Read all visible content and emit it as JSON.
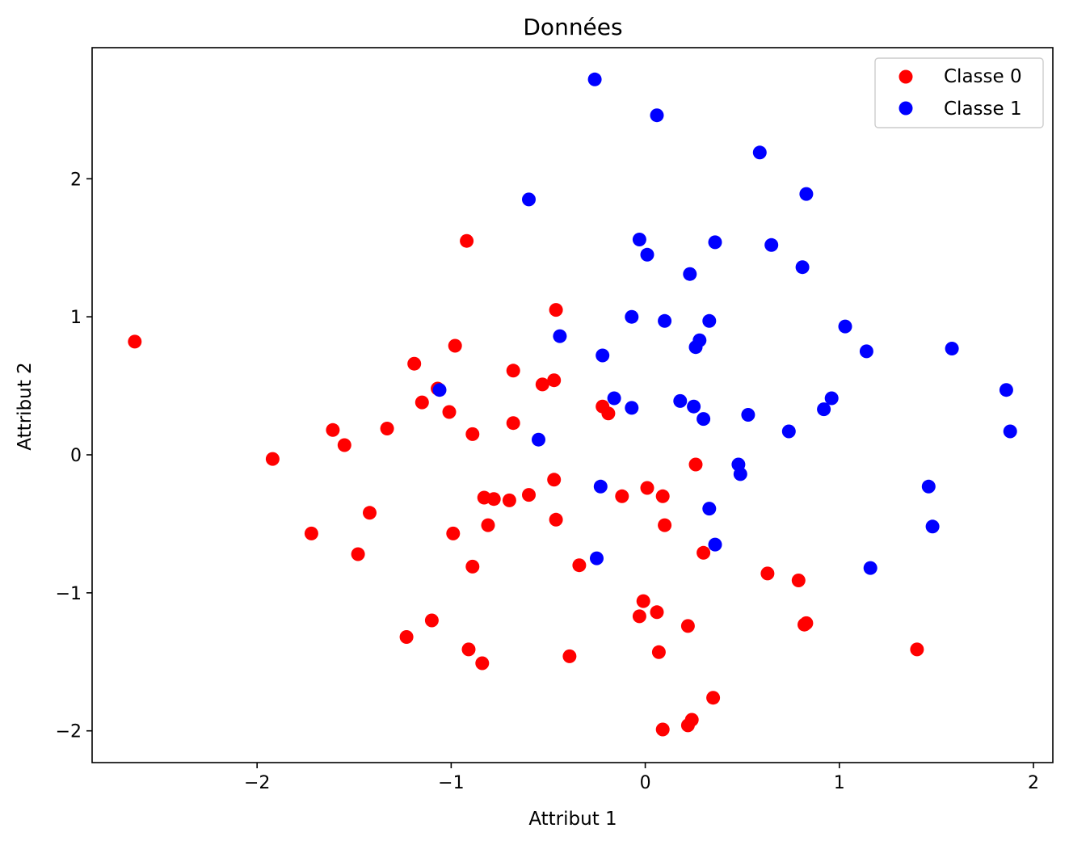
{
  "chart_data": {
    "type": "scatter",
    "title": "Données",
    "xlabel": "Attribut 1",
    "ylabel": "Attribut 2",
    "xlim": [
      -2.85,
      2.1
    ],
    "ylim": [
      -2.23,
      2.95
    ],
    "xticks": [
      -2,
      -1,
      0,
      1,
      2
    ],
    "yticks": [
      -2,
      -1,
      0,
      1,
      2
    ],
    "xtick_labels": [
      "−2",
      "−1",
      "0",
      "1",
      "2"
    ],
    "ytick_labels": [
      "−2",
      "−1",
      "0",
      "1",
      "2"
    ],
    "grid": false,
    "legend_position": "top-right",
    "series": [
      {
        "name": "Classe 0",
        "color": "#ff0000",
        "points": [
          [
            -2.63,
            0.82
          ],
          [
            -1.92,
            -0.03
          ],
          [
            -1.72,
            -0.57
          ],
          [
            -1.61,
            0.18
          ],
          [
            -1.55,
            0.07
          ],
          [
            -1.48,
            -0.72
          ],
          [
            -1.42,
            -0.42
          ],
          [
            -1.33,
            0.19
          ],
          [
            -1.23,
            -1.32
          ],
          [
            -1.19,
            0.66
          ],
          [
            -1.15,
            0.38
          ],
          [
            -1.1,
            -1.2
          ],
          [
            -1.07,
            0.48
          ],
          [
            -1.01,
            0.31
          ],
          [
            -0.99,
            -0.57
          ],
          [
            -0.98,
            0.79
          ],
          [
            -0.92,
            1.55
          ],
          [
            -0.91,
            -1.41
          ],
          [
            -0.89,
            0.15
          ],
          [
            -0.89,
            -0.81
          ],
          [
            -0.84,
            -1.51
          ],
          [
            -0.83,
            -0.31
          ],
          [
            -0.81,
            -0.51
          ],
          [
            -0.78,
            -0.32
          ],
          [
            -0.7,
            -0.33
          ],
          [
            -0.68,
            0.61
          ],
          [
            -0.68,
            0.23
          ],
          [
            -0.6,
            -0.29
          ],
          [
            -0.53,
            0.51
          ],
          [
            -0.47,
            0.54
          ],
          [
            -0.47,
            -0.18
          ],
          [
            -0.46,
            -0.47
          ],
          [
            -0.46,
            1.05
          ],
          [
            -0.39,
            -1.46
          ],
          [
            -0.34,
            -0.8
          ],
          [
            -0.22,
            0.35
          ],
          [
            -0.19,
            0.3
          ],
          [
            -0.12,
            -0.3
          ],
          [
            -0.03,
            -1.17
          ],
          [
            -0.01,
            -1.06
          ],
          [
            0.01,
            -0.24
          ],
          [
            0.06,
            -1.14
          ],
          [
            0.07,
            -1.43
          ],
          [
            0.09,
            -0.3
          ],
          [
            0.09,
            -1.99
          ],
          [
            0.1,
            -0.51
          ],
          [
            0.22,
            -1.24
          ],
          [
            0.22,
            -1.96
          ],
          [
            0.24,
            -1.92
          ],
          [
            0.26,
            -0.07
          ],
          [
            0.3,
            -0.71
          ],
          [
            0.35,
            -1.76
          ],
          [
            0.63,
            -0.86
          ],
          [
            0.79,
            -0.91
          ],
          [
            0.82,
            -1.23
          ],
          [
            0.83,
            -1.22
          ],
          [
            1.4,
            -1.41
          ]
        ]
      },
      {
        "name": "Classe 1",
        "color": "#0000ff",
        "points": [
          [
            -1.06,
            0.47
          ],
          [
            -0.6,
            1.85
          ],
          [
            -0.55,
            0.11
          ],
          [
            -0.44,
            0.86
          ],
          [
            -0.26,
            2.72
          ],
          [
            -0.25,
            -0.75
          ],
          [
            -0.23,
            -0.23
          ],
          [
            -0.22,
            0.72
          ],
          [
            -0.16,
            0.41
          ],
          [
            -0.07,
            1.0
          ],
          [
            -0.07,
            0.34
          ],
          [
            -0.03,
            1.56
          ],
          [
            0.01,
            1.45
          ],
          [
            0.06,
            2.46
          ],
          [
            0.1,
            0.97
          ],
          [
            0.18,
            0.39
          ],
          [
            0.23,
            1.31
          ],
          [
            0.25,
            0.35
          ],
          [
            0.26,
            0.78
          ],
          [
            0.28,
            0.83
          ],
          [
            0.3,
            0.26
          ],
          [
            0.33,
            -0.39
          ],
          [
            0.33,
            0.97
          ],
          [
            0.36,
            -0.65
          ],
          [
            0.36,
            1.54
          ],
          [
            0.48,
            -0.07
          ],
          [
            0.49,
            -0.14
          ],
          [
            0.53,
            0.29
          ],
          [
            0.59,
            2.19
          ],
          [
            0.65,
            1.52
          ],
          [
            0.74,
            0.17
          ],
          [
            0.81,
            1.36
          ],
          [
            0.83,
            1.89
          ],
          [
            0.92,
            0.33
          ],
          [
            0.96,
            0.41
          ],
          [
            1.03,
            0.93
          ],
          [
            1.14,
            0.75
          ],
          [
            1.16,
            -0.82
          ],
          [
            1.46,
            -0.23
          ],
          [
            1.48,
            -0.52
          ],
          [
            1.58,
            0.77
          ],
          [
            1.86,
            0.47
          ],
          [
            1.88,
            0.17
          ]
        ]
      }
    ]
  }
}
